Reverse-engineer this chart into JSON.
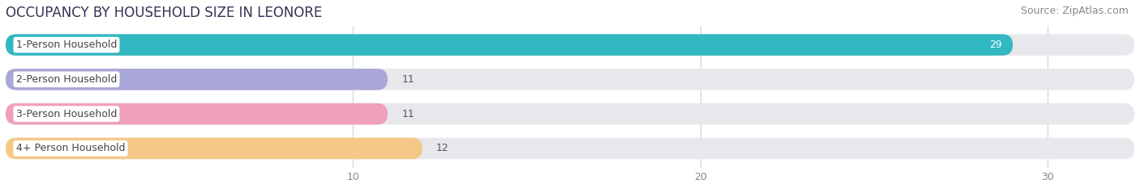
{
  "title": "OCCUPANCY BY HOUSEHOLD SIZE IN LEONORE",
  "source": "Source: ZipAtlas.com",
  "categories": [
    "1-Person Household",
    "2-Person Household",
    "3-Person Household",
    "4+ Person Household"
  ],
  "values": [
    29,
    11,
    11,
    12
  ],
  "bar_colors": [
    "#31b8c0",
    "#aaa8d8",
    "#f0a0b8",
    "#f5c888"
  ],
  "label_bg_colors": [
    "#ffffff",
    "#ffffff",
    "#ffffff",
    "#ffffff"
  ],
  "label_left_colors": [
    "#31b8c0",
    "#aaa8d8",
    "#f0a0b8",
    "#f5c888"
  ],
  "xlim": [
    0,
    32.5
  ],
  "xticks": [
    10,
    20,
    30
  ],
  "background_color": "#ffffff",
  "bar_bg_color": "#e8e8ec",
  "title_fontsize": 12,
  "source_fontsize": 9,
  "label_fontsize": 9,
  "value_fontsize": 9
}
